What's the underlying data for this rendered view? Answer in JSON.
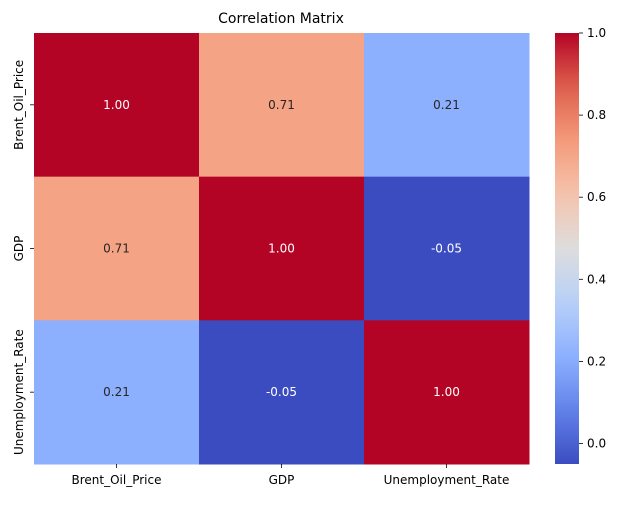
{
  "chart_data": {
    "type": "heatmap",
    "title": "Correlation Matrix",
    "x_categories": [
      "Brent_Oil_Price",
      "GDP",
      "Unemployment_Rate"
    ],
    "y_categories": [
      "Brent_Oil_Price",
      "GDP",
      "Unemployment_Rate"
    ],
    "values": [
      [
        1.0,
        0.71,
        0.21
      ],
      [
        0.71,
        1.0,
        -0.05
      ],
      [
        0.21,
        -0.05,
        1.0
      ]
    ],
    "cell_labels": [
      [
        "1.00",
        "0.71",
        "0.21"
      ],
      [
        "0.71",
        "1.00",
        "-0.05"
      ],
      [
        "0.21",
        "-0.05",
        "1.00"
      ]
    ],
    "colormap": "coolwarm",
    "colorbar": {
      "range": [
        -0.05,
        1.0
      ],
      "ticks": [
        0.0,
        0.2,
        0.4,
        0.6,
        0.8,
        1.0
      ],
      "tick_labels": [
        "0.0",
        "0.2",
        "0.4",
        "0.6",
        "0.8",
        "1.0"
      ]
    },
    "grid": false,
    "legend": "colorbar-right"
  }
}
